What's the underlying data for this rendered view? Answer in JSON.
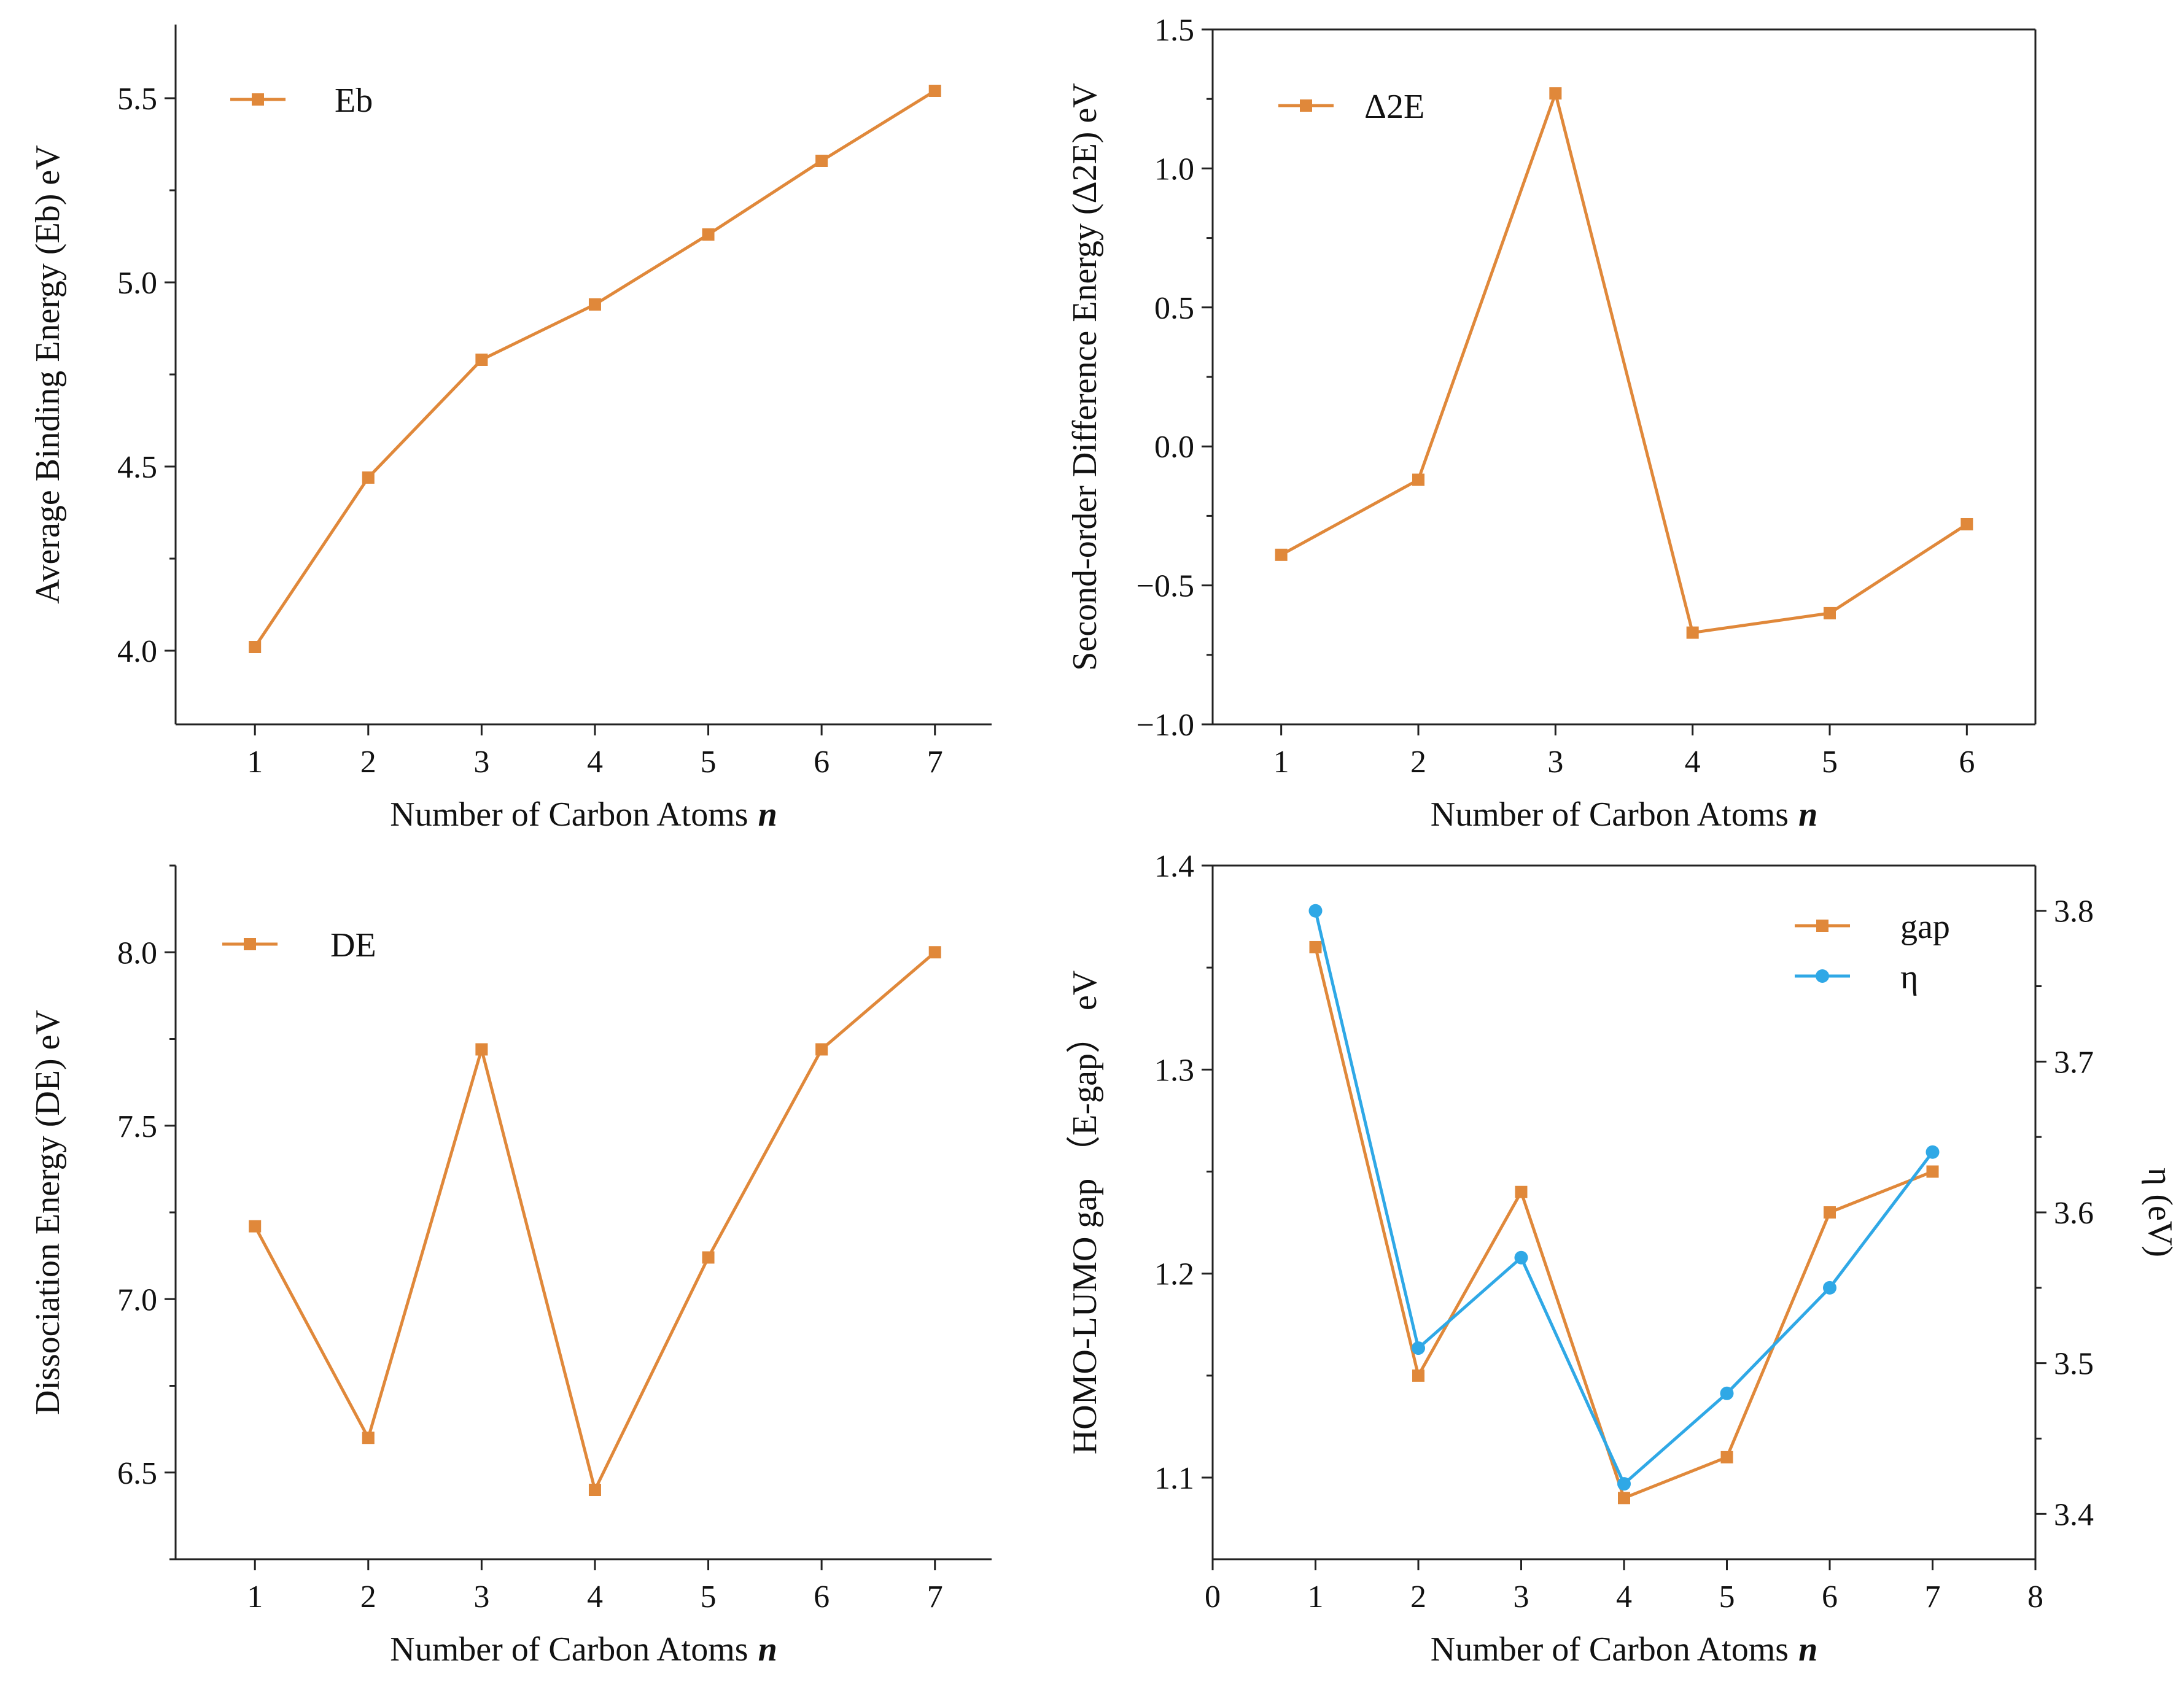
{
  "chart_data": [
    {
      "type": "line",
      "x": [
        1,
        2,
        3,
        4,
        5,
        6,
        7
      ],
      "series": [
        {
          "name": "Eb",
          "values": [
            4.01,
            4.47,
            4.79,
            4.94,
            5.13,
            5.33,
            5.52
          ],
          "color": "#e0883a",
          "marker": "square"
        }
      ],
      "xlabel": "Number of Carbon Atoms",
      "xlabel_symbol": "n",
      "ylabel": "Average Binding Energy (Eb) eV",
      "xlim": [
        0.3,
        7.5
      ],
      "ylim": [
        3.8,
        5.7
      ],
      "xticks": [
        1,
        2,
        3,
        4,
        5,
        6,
        7
      ],
      "yticks": [
        4.0,
        4.5,
        5.0,
        5.5
      ],
      "legend_position": "top-left",
      "grid": false
    },
    {
      "type": "line",
      "x": [
        1,
        2,
        3,
        4,
        5,
        6
      ],
      "series": [
        {
          "name": "Δ2E",
          "values": [
            -0.39,
            -0.12,
            1.27,
            -0.67,
            -0.6,
            -0.28
          ],
          "color": "#e0883a",
          "marker": "square"
        }
      ],
      "xlabel": "Number of Carbon Atoms",
      "xlabel_symbol": "n",
      "ylabel": "Second-order Difference Energy (Δ2E) eV",
      "xlim": [
        0.5,
        6.5
      ],
      "ylim": [
        -1.0,
        1.5
      ],
      "xticks": [
        1,
        2,
        3,
        4,
        5,
        6
      ],
      "yticks": [
        -1.0,
        -0.5,
        0.0,
        0.5,
        1.0,
        1.5
      ],
      "legend_position": "top-left",
      "grid": false
    },
    {
      "type": "line",
      "x": [
        1,
        2,
        3,
        4,
        5,
        6,
        7
      ],
      "series": [
        {
          "name": "DE",
          "values": [
            7.21,
            6.6,
            7.72,
            6.45,
            7.12,
            7.72,
            8.0
          ],
          "color": "#e0883a",
          "marker": "square"
        }
      ],
      "xlabel": "Number of Carbon Atoms",
      "xlabel_symbol": "n",
      "ylabel": "Dissociation Energy (DE) eV",
      "xlim": [
        0.3,
        7.5
      ],
      "ylim": [
        6.25,
        8.25
      ],
      "xticks": [
        1,
        2,
        3,
        4,
        5,
        6,
        7
      ],
      "yticks": [
        6.5,
        7.0,
        7.5,
        8.0
      ],
      "legend_position": "top-left",
      "grid": false
    },
    {
      "type": "line",
      "x": [
        1,
        2,
        3,
        4,
        5,
        6,
        7
      ],
      "series": [
        {
          "name": "gap",
          "values": [
            1.36,
            1.15,
            1.24,
            1.09,
            1.11,
            1.23,
            1.25
          ],
          "color": "#e0883a",
          "marker": "square",
          "axis": "left"
        },
        {
          "name": "η",
          "values": [
            3.8,
            3.51,
            3.57,
            3.42,
            3.48,
            3.55,
            3.64
          ],
          "color": "#2fa8e6",
          "marker": "circle",
          "axis": "right"
        }
      ],
      "xlabel": "Number of Carbon Atoms",
      "xlabel_symbol": "n",
      "ylabel": "HOMO-LUMO gap （E-gap） eV",
      "y2label": "η (eV)",
      "xlim": [
        0,
        8
      ],
      "ylim": [
        1.06,
        1.4
      ],
      "y2lim": [
        3.37,
        3.83
      ],
      "xticks": [
        0,
        1,
        2,
        3,
        4,
        5,
        6,
        7,
        8
      ],
      "yticks": [
        1.1,
        1.2,
        1.3,
        1.4
      ],
      "y2ticks": [
        3.4,
        3.5,
        3.6,
        3.7,
        3.8
      ],
      "legend_position": "top-right",
      "grid": false
    }
  ]
}
